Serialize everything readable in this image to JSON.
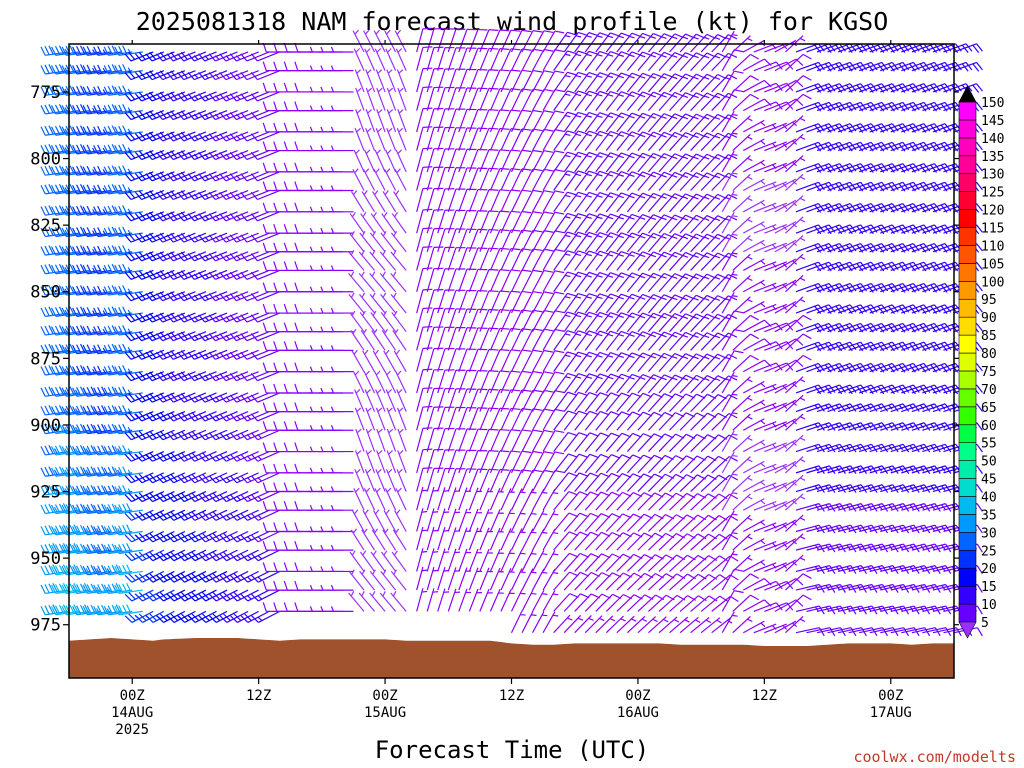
{
  "chart_data": {
    "type": "wind-barb profile",
    "title": "2025081318 NAM forecast wind profile (kt) for KGSO",
    "xlabel": "Forecast Time (UTC)",
    "ylabel": "",
    "y_ticks": [
      775,
      800,
      825,
      850,
      875,
      900,
      925,
      950,
      975
    ],
    "y_range_hPa": [
      757,
      995
    ],
    "x_range_hours_after_00Z_14AUG": [
      -6,
      78
    ],
    "x_ticks": [
      {
        "hour": 0,
        "lines": [
          "00Z",
          "14AUG",
          "2025"
        ]
      },
      {
        "hour": 12,
        "lines": [
          "12Z"
        ]
      },
      {
        "hour": 24,
        "lines": [
          "00Z",
          "15AUG"
        ]
      },
      {
        "hour": 36,
        "lines": [
          "12Z"
        ]
      },
      {
        "hour": 48,
        "lines": [
          "00Z",
          "16AUG"
        ]
      },
      {
        "hour": 60,
        "lines": [
          "12Z"
        ]
      },
      {
        "hour": 72,
        "lines": [
          "00Z",
          "17AUG"
        ]
      }
    ],
    "pressure_levels_hPa": [
      760,
      767,
      775,
      782,
      790,
      797,
      805,
      812,
      820,
      828,
      835,
      842,
      850,
      858,
      865,
      872,
      880,
      888,
      895,
      902,
      910,
      918,
      925,
      932,
      940,
      947,
      955,
      962,
      970,
      978
    ],
    "forecast_hours": [
      -6,
      -5,
      -4,
      -3,
      -2,
      -1,
      0,
      1,
      2,
      3,
      4,
      5,
      6,
      7,
      8,
      9,
      10,
      11,
      12,
      13,
      14,
      15,
      16,
      17,
      18,
      19,
      20,
      21,
      22,
      23,
      24,
      25,
      26,
      27,
      28,
      29,
      30,
      31,
      32,
      33,
      34,
      35,
      36,
      37,
      38,
      39,
      40,
      41,
      42,
      43,
      44,
      45,
      46,
      47,
      48,
      49,
      50,
      51,
      52,
      53,
      54,
      55,
      56,
      57,
      58,
      59,
      60,
      61,
      62,
      63,
      64,
      65,
      66,
      67,
      68,
      69,
      70,
      71,
      72,
      73,
      74,
      75,
      76,
      77,
      78
    ],
    "surface_pressure_hPa": [
      [
        -6,
        981
      ],
      [
        -4,
        980.5
      ],
      [
        -2,
        980
      ],
      [
        0,
        980.5
      ],
      [
        2,
        981
      ],
      [
        3,
        980.5
      ],
      [
        6,
        980
      ],
      [
        8,
        980
      ],
      [
        10,
        980
      ],
      [
        12,
        980.5
      ],
      [
        14,
        981
      ],
      [
        16,
        980.5
      ],
      [
        18,
        980.5
      ],
      [
        20,
        980.5
      ],
      [
        22,
        980.5
      ],
      [
        24,
        980.5
      ],
      [
        26,
        981
      ],
      [
        28,
        981
      ],
      [
        30,
        981
      ],
      [
        32,
        981
      ],
      [
        34,
        981
      ],
      [
        36,
        982
      ],
      [
        38,
        982.5
      ],
      [
        40,
        982.5
      ],
      [
        42,
        982
      ],
      [
        44,
        982
      ],
      [
        46,
        982
      ],
      [
        48,
        982
      ],
      [
        50,
        982
      ],
      [
        52,
        982.5
      ],
      [
        54,
        982.5
      ],
      [
        56,
        982.5
      ],
      [
        58,
        982.5
      ],
      [
        60,
        983
      ],
      [
        62,
        983
      ],
      [
        64,
        983
      ],
      [
        66,
        982.5
      ],
      [
        68,
        982
      ],
      [
        70,
        982
      ],
      [
        72,
        982
      ],
      [
        74,
        982.5
      ],
      [
        76,
        982
      ],
      [
        78,
        982
      ]
    ],
    "wind_direction_regimes": [
      {
        "hours": "-6 to 2",
        "from_deg": 260,
        "speed_kt": "30-45"
      },
      {
        "hours": "2 to 15",
        "from_deg": 245,
        "speed_kt": "10-25"
      },
      {
        "hours": "15 to 22",
        "from_deg": 270,
        "speed_kt": "5-10"
      },
      {
        "hours": "22 to 27",
        "from_deg": 330,
        "speed_kt": "2-5"
      },
      {
        "hours": "27 to 40",
        "from_deg": 20,
        "speed_kt": "5-10"
      },
      {
        "hours": "40 to 56",
        "from_deg": 40,
        "speed_kt": "5-15"
      },
      {
        "hours": "56 to 63",
        "from_deg": 60,
        "speed_kt": "5-10"
      },
      {
        "hours": "63 to 78",
        "from_deg": 75,
        "speed_kt": "10-20"
      }
    ],
    "colorbar": {
      "levels": [
        5,
        10,
        15,
        20,
        25,
        30,
        35,
        40,
        45,
        50,
        55,
        60,
        65,
        70,
        75,
        80,
        85,
        90,
        95,
        100,
        105,
        110,
        115,
        120,
        125,
        130,
        135,
        140,
        145,
        150
      ],
      "colors": [
        "#8b00ff",
        "#6600ff",
        "#3300ff",
        "#0000ff",
        "#0033ff",
        "#0066ff",
        "#0099ff",
        "#00bbee",
        "#00ddcc",
        "#00eeaa",
        "#00ff88",
        "#00ff44",
        "#33ff00",
        "#66ff00",
        "#aaff00",
        "#ddff00",
        "#ffff00",
        "#ffdd00",
        "#ffbb00",
        "#ff9900",
        "#ff7700",
        "#ff5500",
        "#ff3300",
        "#ff0000",
        "#ff0033",
        "#ff0066",
        "#ff0099",
        "#ff00bb",
        "#ff00dd",
        "#ff00ff"
      ],
      "below_color": "#9b30ff",
      "above_color": "#000000"
    },
    "colors": {
      "ground": "#a0522d",
      "frame": "#000000"
    },
    "credit": "coolwx.com/modelts",
    "grid": false
  }
}
